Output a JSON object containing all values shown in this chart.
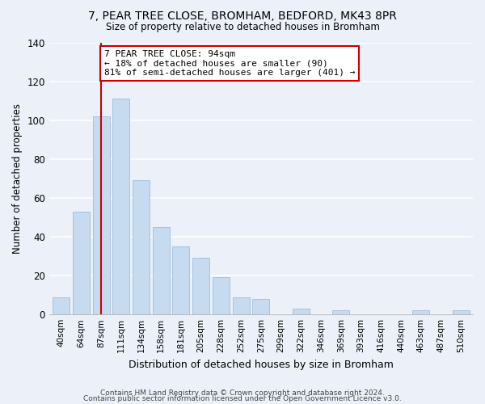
{
  "title": "7, PEAR TREE CLOSE, BROMHAM, BEDFORD, MK43 8PR",
  "subtitle": "Size of property relative to detached houses in Bromham",
  "xlabel": "Distribution of detached houses by size in Bromham",
  "ylabel": "Number of detached properties",
  "bar_labels": [
    "40sqm",
    "64sqm",
    "87sqm",
    "111sqm",
    "134sqm",
    "158sqm",
    "181sqm",
    "205sqm",
    "228sqm",
    "252sqm",
    "275sqm",
    "299sqm",
    "322sqm",
    "346sqm",
    "369sqm",
    "393sqm",
    "416sqm",
    "440sqm",
    "463sqm",
    "487sqm",
    "510sqm"
  ],
  "bar_values": [
    9,
    53,
    102,
    111,
    69,
    45,
    35,
    29,
    19,
    9,
    8,
    0,
    3,
    0,
    2,
    0,
    0,
    0,
    2,
    0,
    2
  ],
  "bar_color": "#c6daf0",
  "bar_edge_color": "#a0bcd8",
  "vline_x": 2,
  "vline_color": "#cc0000",
  "ylim": [
    0,
    140
  ],
  "annotation_text": "7 PEAR TREE CLOSE: 94sqm\n← 18% of detached houses are smaller (90)\n81% of semi-detached houses are larger (401) →",
  "annotation_box_color": "#ffffff",
  "annotation_box_edge": "#cc0000",
  "footer1": "Contains HM Land Registry data © Crown copyright and database right 2024.",
  "footer2": "Contains public sector information licensed under the Open Government Licence v3.0.",
  "background_color": "#ecf1f9"
}
